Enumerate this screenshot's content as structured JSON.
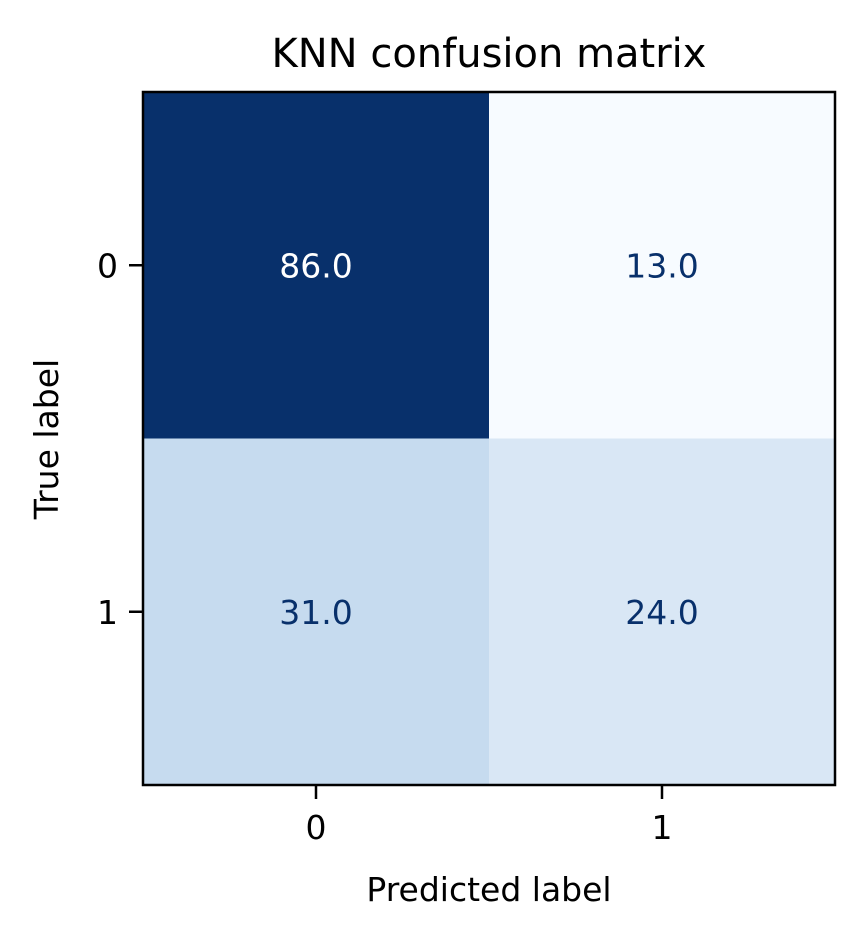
{
  "chart_data": {
    "type": "heatmap",
    "title": "KNN confusion matrix",
    "xlabel": "Predicted label",
    "ylabel": "True label",
    "x_categories": [
      "0",
      "1"
    ],
    "y_categories": [
      "0",
      "1"
    ],
    "values": [
      [
        86.0,
        13.0
      ],
      [
        31.0,
        24.0
      ]
    ],
    "value_labels": [
      [
        "86.0",
        "13.0"
      ],
      [
        "31.0",
        "24.0"
      ]
    ],
    "colormap": "Blues",
    "cell_colors": [
      [
        "#08306b",
        "#f7fbff"
      ],
      [
        "#c6dbef",
        "#d9e7f5"
      ]
    ],
    "text_colors": [
      [
        "#ffffff",
        "#08306b"
      ],
      [
        "#08306b",
        "#08306b"
      ]
    ],
    "colorbar": false,
    "grid": false
  }
}
